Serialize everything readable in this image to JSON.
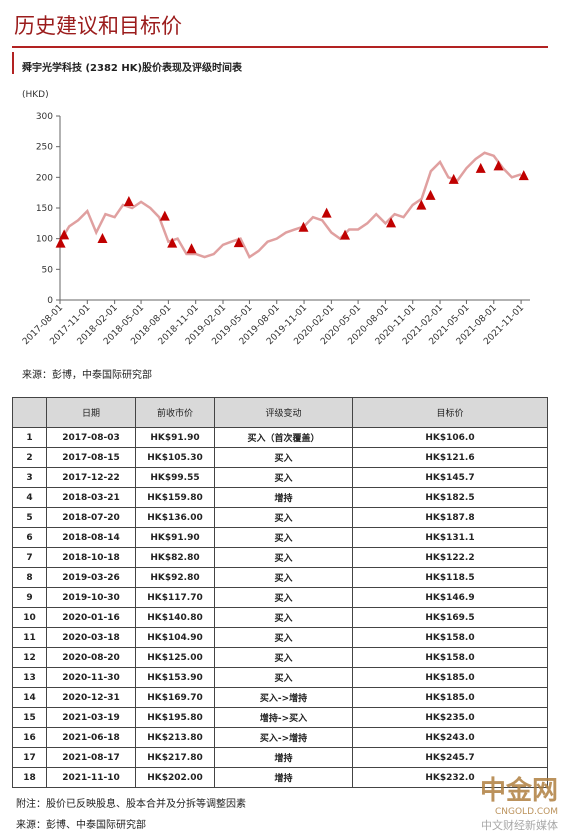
{
  "header": {
    "title": "历史建议和目标价"
  },
  "chart_data": {
    "type": "line",
    "title": "舜宇光学科技 (2382 HK)股价表现及评级时间表",
    "ylabel": "(HKD)",
    "x": [
      "2017-08-01",
      "2017-09-01",
      "2017-10-01",
      "2017-11-01",
      "2017-12-01",
      "2018-01-01",
      "2018-02-01",
      "2018-03-01",
      "2018-04-01",
      "2018-05-01",
      "2018-06-01",
      "2018-07-01",
      "2018-08-01",
      "2018-09-01",
      "2018-10-01",
      "2018-11-01",
      "2018-12-01",
      "2019-01-01",
      "2019-02-01",
      "2019-03-01",
      "2019-04-01",
      "2019-05-01",
      "2019-06-01",
      "2019-07-01",
      "2019-08-01",
      "2019-09-01",
      "2019-10-01",
      "2019-11-01",
      "2019-12-01",
      "2020-01-01",
      "2020-02-01",
      "2020-03-01",
      "2020-04-01",
      "2020-05-01",
      "2020-06-01",
      "2020-07-01",
      "2020-08-01",
      "2020-09-01",
      "2020-10-01",
      "2020-11-01",
      "2020-12-01",
      "2021-01-01",
      "2021-02-01",
      "2021-03-01",
      "2021-04-01",
      "2021-05-01",
      "2021-06-01",
      "2021-07-01",
      "2021-08-01",
      "2021-09-01",
      "2021-10-01",
      "2021-11-01"
    ],
    "series": [
      {
        "color": "#e0a0a0",
        "values": [
          95,
          120,
          130,
          145,
          110,
          140,
          135,
          155,
          150,
          160,
          150,
          135,
          95,
          100,
          75,
          75,
          70,
          75,
          90,
          95,
          100,
          70,
          80,
          95,
          100,
          110,
          115,
          120,
          135,
          130,
          110,
          100,
          115,
          115,
          125,
          140,
          125,
          140,
          135,
          155,
          165,
          210,
          225,
          200,
          195,
          215,
          230,
          240,
          235,
          215,
          200,
          205
        ]
      }
    ],
    "markers": {
      "color": "#c00000",
      "x": [
        "2017-08-03",
        "2017-08-15",
        "2017-12-22",
        "2018-03-21",
        "2018-07-20",
        "2018-08-14",
        "2018-10-18",
        "2019-03-26",
        "2019-10-30",
        "2020-01-16",
        "2020-03-18",
        "2020-08-20",
        "2020-11-30",
        "2020-12-31",
        "2021-03-19",
        "2021-06-18",
        "2021-08-17",
        "2021-11-10"
      ],
      "values": [
        91.9,
        105.3,
        99.55,
        159.8,
        136,
        91.9,
        82.8,
        92.8,
        117.7,
        140.8,
        104.9,
        125,
        153.9,
        169.7,
        195.8,
        213.8,
        217.8,
        202
      ]
    },
    "xlim": [
      "2017-08-01",
      "2021-12-01"
    ],
    "xticks": [
      "2017-08-01",
      "2017-11-01",
      "2018-02-01",
      "2018-05-01",
      "2018-08-01",
      "2018-11-01",
      "2019-02-01",
      "2019-05-01",
      "2019-08-01",
      "2019-11-01",
      "2020-02-01",
      "2020-05-01",
      "2020-08-01",
      "2020-11-01",
      "2021-02-01",
      "2021-05-01",
      "2021-08-01",
      "2021-11-01"
    ],
    "ylim": [
      0,
      300
    ],
    "yticks": [
      0,
      50,
      100,
      150,
      200,
      250,
      300
    ]
  },
  "source": "来源：彭博，中泰国际研究部",
  "table": {
    "columns": [
      "日期",
      "前收市价",
      "评级变动",
      "目标价"
    ],
    "rows": [
      [
        "1",
        "2017-08-03",
        "HK$91.90",
        "买入（首次覆盖）",
        "HK$106.0"
      ],
      [
        "2",
        "2017-08-15",
        "HK$105.30",
        "买入",
        "HK$121.6"
      ],
      [
        "3",
        "2017-12-22",
        "HK$99.55",
        "买入",
        "HK$145.7"
      ],
      [
        "4",
        "2018-03-21",
        "HK$159.80",
        "增持",
        "HK$182.5"
      ],
      [
        "5",
        "2018-07-20",
        "HK$136.00",
        "买入",
        "HK$187.8"
      ],
      [
        "6",
        "2018-08-14",
        "HK$91.90",
        "买入",
        "HK$131.1"
      ],
      [
        "7",
        "2018-10-18",
        "HK$82.80",
        "买入",
        "HK$122.2"
      ],
      [
        "8",
        "2019-03-26",
        "HK$92.80",
        "买入",
        "HK$118.5"
      ],
      [
        "9",
        "2019-10-30",
        "HK$117.70",
        "买入",
        "HK$146.9"
      ],
      [
        "10",
        "2020-01-16",
        "HK$140.80",
        "买入",
        "HK$169.5"
      ],
      [
        "11",
        "2020-03-18",
        "HK$104.90",
        "买入",
        "HK$158.0"
      ],
      [
        "12",
        "2020-08-20",
        "HK$125.00",
        "买入",
        "HK$158.0"
      ],
      [
        "13",
        "2020-11-30",
        "HK$153.90",
        "买入",
        "HK$185.0"
      ],
      [
        "14",
        "2020-12-31",
        "HK$169.70",
        "买入->增持",
        "HK$185.0"
      ],
      [
        "15",
        "2021-03-19",
        "HK$195.80",
        "增持->买入",
        "HK$235.0"
      ],
      [
        "16",
        "2021-06-18",
        "HK$213.80",
        "买入->增持",
        "HK$243.0"
      ],
      [
        "17",
        "2021-08-17",
        "HK$217.80",
        "增持",
        "HK$245.7"
      ],
      [
        "18",
        "2021-11-10",
        "HK$202.00",
        "增持",
        "HK$232.0"
      ]
    ]
  },
  "notes": [
    "附注：股价已反映股息、股本合并及分拆等调整因素",
    "来源：彭博、中泰国际研究部"
  ],
  "watermark": {
    "brand": "中金网",
    "site": "CNGOLD.COM",
    "slogan": "中文财经新媒体"
  }
}
